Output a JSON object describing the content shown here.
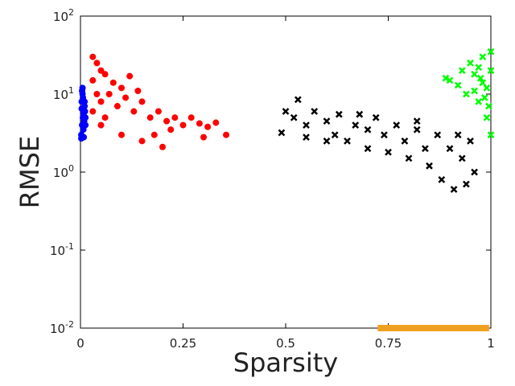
{
  "chart_data": {
    "type": "scatter",
    "xlabel": "Sparsity",
    "ylabel": "RMSE",
    "log_y": true,
    "xlim": [
      0,
      1
    ],
    "ylim": [
      0.01,
      100
    ],
    "xticks": [
      0,
      0.25,
      0.5,
      0.75,
      1
    ],
    "yticks": [
      {
        "value": 0.01,
        "label": "10",
        "exponent": "-2"
      },
      {
        "value": 0.1,
        "label": "10",
        "exponent": "-1"
      },
      {
        "value": 1,
        "label": "10",
        "exponent": "0"
      },
      {
        "value": 10,
        "label": "10",
        "exponent": "1"
      },
      {
        "value": 100,
        "label": "10",
        "exponent": "2"
      }
    ],
    "series": [
      {
        "color": "#0000ff",
        "marker": "circle",
        "x": [
          0.002,
          0.004,
          0.006,
          0.008,
          0.01,
          0.012,
          0.003,
          0.005,
          0.007,
          0.009,
          0.011,
          0.002,
          0.006,
          0.01,
          0.004,
          0.008,
          0.012,
          0.003,
          0.007,
          0.005
        ],
        "values": [
          3,
          4,
          5,
          6,
          7,
          5,
          8,
          10,
          3.5,
          4.5,
          6,
          2.7,
          9,
          8,
          11,
          2.8,
          4,
          6.5,
          5.5,
          12
        ]
      },
      {
        "color": "#ff0000",
        "marker": "circle",
        "x": [
          0.03,
          0.04,
          0.05,
          0.03,
          0.06,
          0.08,
          0.1,
          0.12,
          0.05,
          0.07,
          0.09,
          0.11,
          0.13,
          0.15,
          0.17,
          0.19,
          0.21,
          0.23,
          0.25,
          0.27,
          0.29,
          0.31,
          0.33,
          0.355,
          0.2,
          0.15,
          0.1,
          0.05,
          0.03,
          0.04,
          0.06,
          0.14,
          0.3,
          0.18,
          0.22
        ],
        "values": [
          30,
          25,
          20,
          15,
          18,
          14,
          12,
          17,
          8,
          10,
          7,
          9,
          6,
          8,
          5,
          6,
          4.5,
          5,
          4,
          5,
          4.2,
          3.8,
          4.3,
          3,
          2.1,
          2.5,
          3,
          4,
          6,
          10,
          5,
          11,
          2.8,
          3,
          3.5
        ]
      },
      {
        "color": "#000000",
        "marker": "cross",
        "x": [
          0.49,
          0.5,
          0.52,
          0.53,
          0.55,
          0.55,
          0.57,
          0.6,
          0.62,
          0.63,
          0.65,
          0.67,
          0.7,
          0.7,
          0.72,
          0.74,
          0.75,
          0.77,
          0.79,
          0.8,
          0.82,
          0.84,
          0.85,
          0.87,
          0.88,
          0.9,
          0.91,
          0.92,
          0.93,
          0.94,
          0.95,
          0.96,
          0.6,
          0.68,
          0.82
        ],
        "values": [
          3.2,
          6,
          5,
          8.5,
          4,
          2.8,
          6,
          4.5,
          3,
          5.5,
          2.5,
          4,
          3.5,
          2,
          5,
          3,
          1.8,
          4,
          2.5,
          1.5,
          3.5,
          2,
          1.2,
          3,
          0.8,
          2,
          0.6,
          3,
          1.5,
          0.7,
          2.5,
          1,
          2.5,
          5.5,
          4.5
        ]
      },
      {
        "color": "#00ff00",
        "marker": "cross",
        "x": [
          0.89,
          0.9,
          0.92,
          0.93,
          0.94,
          0.95,
          0.96,
          0.97,
          0.98,
          0.99,
          1,
          0.99,
          1,
          0.98,
          0.97,
          0.96,
          0.995,
          1,
          0.985,
          0.975
        ],
        "values": [
          16,
          15,
          13,
          20,
          10,
          25,
          18,
          8,
          30,
          12,
          35,
          5,
          3,
          14,
          22,
          11,
          7,
          20,
          9,
          16
        ]
      },
      {
        "color": "#f0a020",
        "marker": "square",
        "x": [
          0.74,
          0.76,
          0.78,
          0.8,
          0.82,
          0.84,
          0.86,
          0.88,
          0.9,
          0.92,
          0.94,
          0.96,
          0.98
        ],
        "values": [
          0.01,
          0.01,
          0.01,
          0.01,
          0.01,
          0.01,
          0.01,
          0.01,
          0.01,
          0.01,
          0.01,
          0.01,
          0.01
        ]
      }
    ]
  }
}
